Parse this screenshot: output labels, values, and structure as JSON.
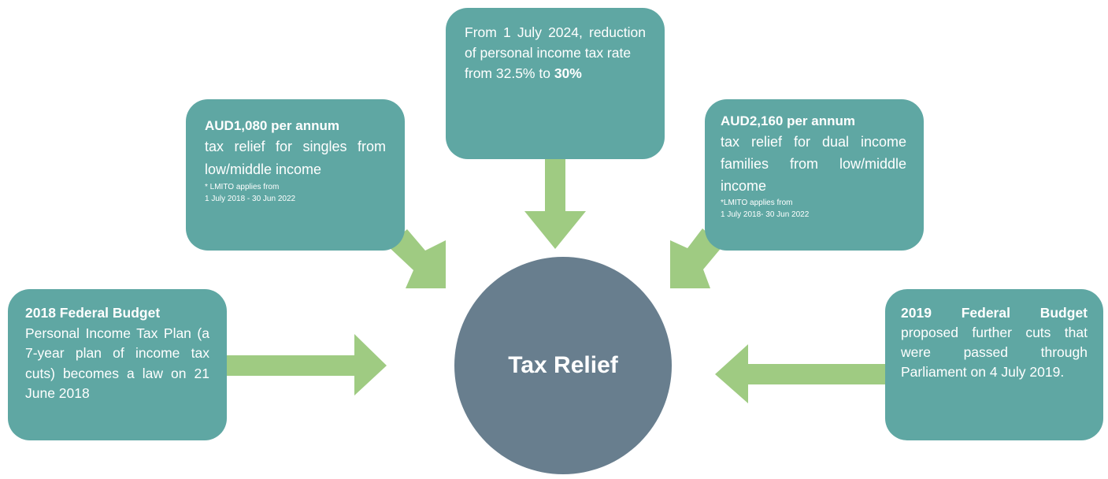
{
  "hub": {
    "label": "Tax Relief"
  },
  "boxes": {
    "budget_2018": {
      "heading": "2018 Federal Budget",
      "body": "Personal Income Tax Plan (a 7-year plan of income tax cuts) becomes a law on 21 June 2018"
    },
    "singles": {
      "heading": "AUD1,080 per annum",
      "body": "tax relief for singles from low/middle income",
      "note_line1": "* LMITO applies from",
      "note_line2": "1 July 2018 - 30 Jun 2022"
    },
    "rate_2024": {
      "line1": "From 1 July 2024, reduction of personal income tax rate",
      "line2_prefix": "from 32.5% to ",
      "line2_bold": "30%"
    },
    "dual": {
      "heading": "AUD2,160 per annum",
      "body": "tax relief for dual income families from low/middle income",
      "note_line1": "*LMITO applies from",
      "note_line2": "1 July 2018- 30 Jun 2022"
    },
    "budget_2019": {
      "heading": "2019 Federal Budget",
      "body": " proposed further cuts that were passed through Parliament on 4 July 2019."
    }
  },
  "colors": {
    "box": "#5fa7a3",
    "hub": "#687e8e",
    "arrow": "#9fcb82"
  }
}
